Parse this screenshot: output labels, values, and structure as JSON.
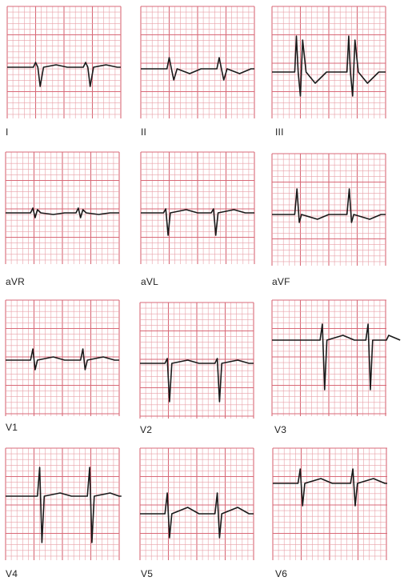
{
  "leads": [
    {
      "id": "I",
      "label": "I"
    },
    {
      "id": "II",
      "label": "II"
    },
    {
      "id": "III",
      "label": "III"
    },
    {
      "id": "aVR",
      "label": "aVR"
    },
    {
      "id": "aVL",
      "label": "aVL"
    },
    {
      "id": "aVF",
      "label": "aVF"
    },
    {
      "id": "V1",
      "label": "V1"
    },
    {
      "id": "V2",
      "label": "V2"
    },
    {
      "id": "V3",
      "label": "V3"
    },
    {
      "id": "V4",
      "label": "V4"
    },
    {
      "id": "V5",
      "label": "V5"
    },
    {
      "id": "V6",
      "label": "V6"
    }
  ],
  "colors": {
    "grid": "#e8a0a8",
    "grid_major": "#d86a78",
    "trace": "#1a1a1a",
    "label": "#222222"
  }
}
